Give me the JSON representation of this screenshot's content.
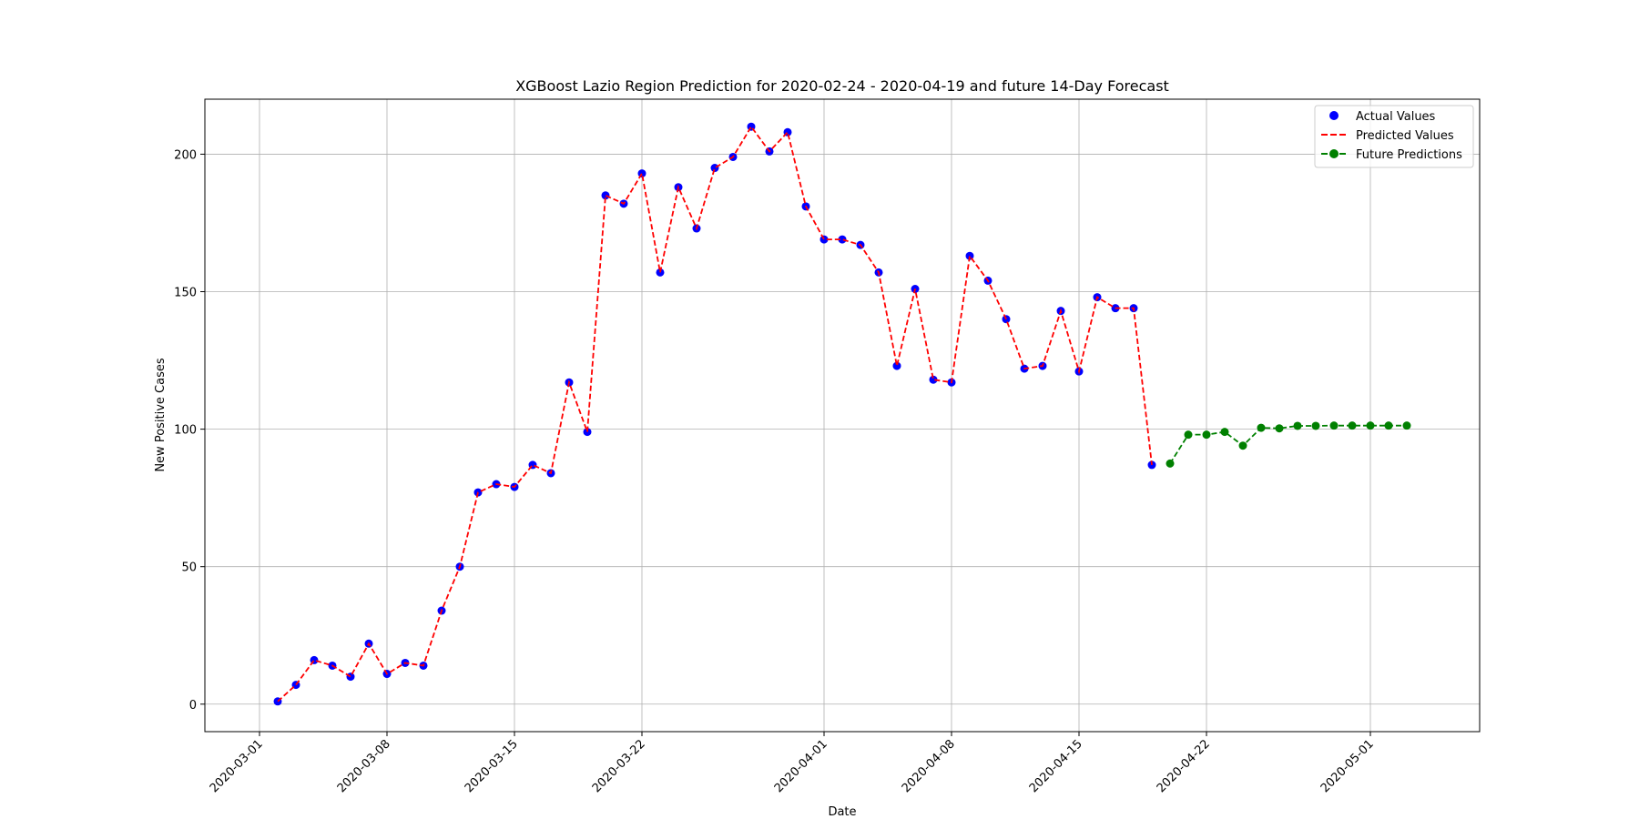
{
  "chart_data": {
    "type": "line",
    "title": "XGBoost Lazio Region Prediction for 2020-02-24 - 2020-04-19 and future 14-Day Forecast",
    "xlabel": "Date",
    "ylabel": "New Positive Cases",
    "xlim": [
      "2020-02-27",
      "2020-05-07"
    ],
    "ylim": [
      -10,
      220
    ],
    "x_ticks": [
      "2020-03-01",
      "2020-03-08",
      "2020-03-15",
      "2020-03-22",
      "2020-04-01",
      "2020-04-08",
      "2020-04-15",
      "2020-04-22",
      "2020-05-01"
    ],
    "y_ticks": [
      0,
      50,
      100,
      150,
      200
    ],
    "grid": true,
    "legend_position": "top-right",
    "colors": {
      "actual": "#0000ff",
      "predicted": "#ff0000",
      "future": "#008000"
    },
    "series": [
      {
        "name": "Actual Values",
        "kind": "scatter",
        "x": [
          "2020-03-02",
          "2020-03-03",
          "2020-03-04",
          "2020-03-05",
          "2020-03-06",
          "2020-03-07",
          "2020-03-08",
          "2020-03-09",
          "2020-03-10",
          "2020-03-11",
          "2020-03-12",
          "2020-03-13",
          "2020-03-14",
          "2020-03-15",
          "2020-03-16",
          "2020-03-17",
          "2020-03-18",
          "2020-03-19",
          "2020-03-20",
          "2020-03-21",
          "2020-03-22",
          "2020-03-23",
          "2020-03-24",
          "2020-03-25",
          "2020-03-26",
          "2020-03-27",
          "2020-03-28",
          "2020-03-29",
          "2020-03-30",
          "2020-03-31",
          "2020-04-01",
          "2020-04-02",
          "2020-04-03",
          "2020-04-04",
          "2020-04-05",
          "2020-04-06",
          "2020-04-07",
          "2020-04-08",
          "2020-04-09",
          "2020-04-10",
          "2020-04-11",
          "2020-04-12",
          "2020-04-13",
          "2020-04-14",
          "2020-04-15",
          "2020-04-16",
          "2020-04-17",
          "2020-04-18",
          "2020-04-19"
        ],
        "values": [
          1,
          7,
          16,
          14,
          10,
          22,
          11,
          15,
          14,
          34,
          50,
          77,
          80,
          79,
          87,
          84,
          117,
          99,
          185,
          182,
          193,
          157,
          188,
          173,
          195,
          199,
          210,
          201,
          208,
          181,
          169,
          169,
          167,
          157,
          123,
          151,
          118,
          117,
          163,
          154,
          140,
          122,
          123,
          143,
          121,
          148,
          144,
          144,
          87
        ]
      },
      {
        "name": "Predicted Values",
        "kind": "line-dashed",
        "x": [
          "2020-03-02",
          "2020-03-03",
          "2020-03-04",
          "2020-03-05",
          "2020-03-06",
          "2020-03-07",
          "2020-03-08",
          "2020-03-09",
          "2020-03-10",
          "2020-03-11",
          "2020-03-12",
          "2020-03-13",
          "2020-03-14",
          "2020-03-15",
          "2020-03-16",
          "2020-03-17",
          "2020-03-18",
          "2020-03-19",
          "2020-03-20",
          "2020-03-21",
          "2020-03-22",
          "2020-03-23",
          "2020-03-24",
          "2020-03-25",
          "2020-03-26",
          "2020-03-27",
          "2020-03-28",
          "2020-03-29",
          "2020-03-30",
          "2020-03-31",
          "2020-04-01",
          "2020-04-02",
          "2020-04-03",
          "2020-04-04",
          "2020-04-05",
          "2020-04-06",
          "2020-04-07",
          "2020-04-08",
          "2020-04-09",
          "2020-04-10",
          "2020-04-11",
          "2020-04-12",
          "2020-04-13",
          "2020-04-14",
          "2020-04-15",
          "2020-04-16",
          "2020-04-17",
          "2020-04-18",
          "2020-04-19"
        ],
        "values": [
          1,
          7,
          16,
          14,
          10,
          22,
          11,
          15,
          14,
          34,
          50,
          77,
          80,
          79,
          87,
          84,
          117,
          99,
          185,
          182,
          193,
          157,
          188,
          173,
          195,
          199,
          210,
          201,
          208,
          181,
          169,
          169,
          167,
          157,
          123,
          151,
          118,
          117,
          163,
          154,
          140,
          122,
          123,
          143,
          121,
          148,
          144,
          144,
          87
        ]
      },
      {
        "name": "Future Predictions",
        "kind": "line-dashed-markers",
        "x": [
          "2020-04-20",
          "2020-04-21",
          "2020-04-22",
          "2020-04-23",
          "2020-04-24",
          "2020-04-25",
          "2020-04-26",
          "2020-04-27",
          "2020-04-28",
          "2020-04-29",
          "2020-04-30",
          "2020-05-01",
          "2020-05-02",
          "2020-05-03"
        ],
        "values": [
          87.5,
          98,
          98,
          99,
          94,
          100.5,
          100.3,
          101.2,
          101.2,
          101.3,
          101.3,
          101.3,
          101.3,
          101.3
        ]
      }
    ]
  }
}
